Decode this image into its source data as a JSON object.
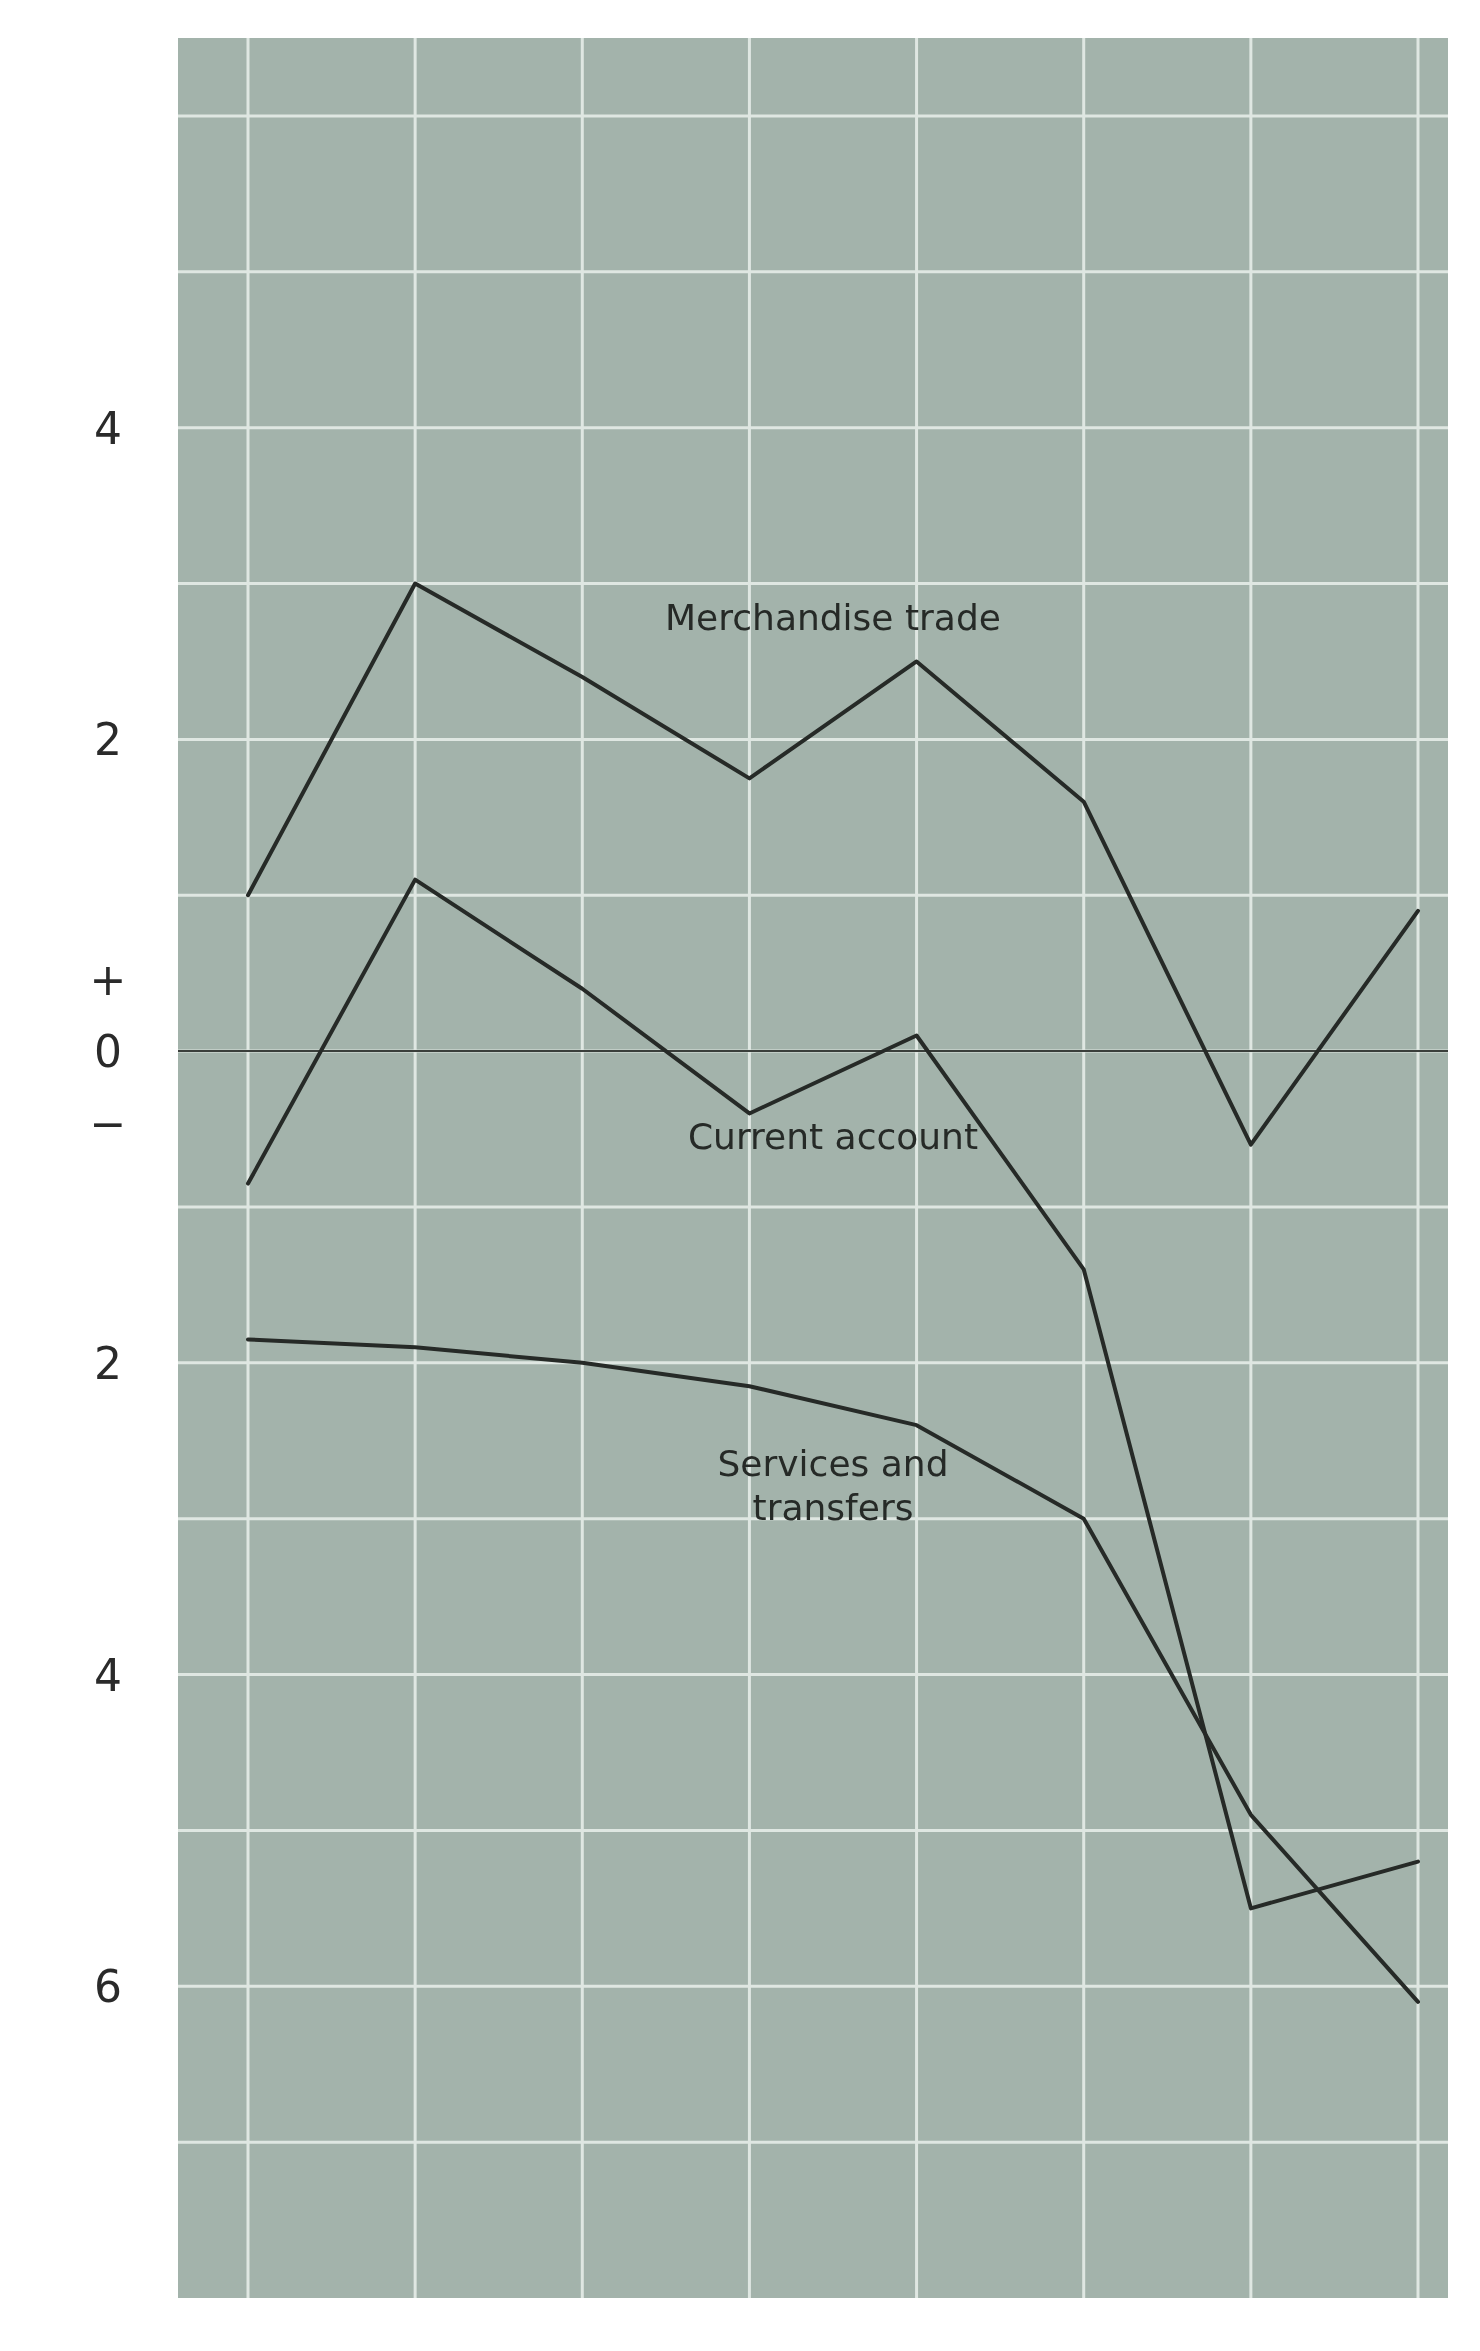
{
  "chart_data": {
    "type": "line",
    "categories": [
      null,
      null,
      null,
      null,
      null,
      null,
      null,
      null
    ],
    "series": [
      {
        "name": "Merchandise trade",
        "color": "#262a27",
        "values": [
          1.0,
          3.0,
          2.4,
          1.75,
          2.5,
          1.6,
          -0.6,
          0.9
        ]
      },
      {
        "name": "Current account",
        "color": "#262a27",
        "values": [
          -0.85,
          1.1,
          0.4,
          -0.4,
          0.1,
          -1.4,
          -5.5,
          -5.2
        ]
      },
      {
        "name": "Services and transfers",
        "color": "#262a27",
        "values": [
          -1.85,
          -1.9,
          -2.0,
          -2.15,
          -2.4,
          -3.0,
          -4.9,
          -6.1
        ]
      }
    ],
    "ylim": [
      -8,
      6.5
    ],
    "yticks": [
      {
        "value": -7,
        "label": null
      },
      {
        "value": -6,
        "label": "6"
      },
      {
        "value": -5,
        "label": null
      },
      {
        "value": -4,
        "label": "4"
      },
      {
        "value": -3,
        "label": null
      },
      {
        "value": -2,
        "label": "2"
      },
      {
        "value": -1,
        "label": null
      },
      {
        "value": 0,
        "label": "+\n0\n−"
      },
      {
        "value": 1,
        "label": null
      },
      {
        "value": 2,
        "label": "2"
      },
      {
        "value": 3,
        "label": null
      },
      {
        "value": 4,
        "label": "4"
      },
      {
        "value": 5,
        "label": null
      },
      {
        "value": 6,
        "label": null
      }
    ],
    "ref_lines": [
      {
        "axis": "y",
        "value": 0,
        "color": "#3a3f3b"
      }
    ],
    "grid": true,
    "tick_labels": "y",
    "marker": "none",
    "line_style": "solid"
  }
}
